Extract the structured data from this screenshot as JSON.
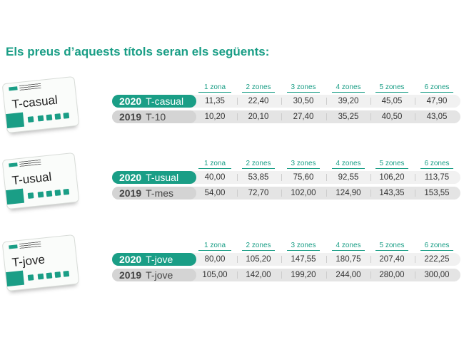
{
  "title": "Els preus d’aquests títols seran els següents:",
  "zones": [
    "1 zona",
    "2 zones",
    "3 zones",
    "4 zones",
    "5 zones",
    "6 zones"
  ],
  "sections": [
    {
      "card": "T-casual",
      "rows": [
        {
          "year": "2020",
          "name": "T-casual",
          "values": [
            "11,35",
            "22,40",
            "30,50",
            "39,20",
            "45,05",
            "47,90"
          ]
        },
        {
          "year": "2019",
          "name": "T-10",
          "values": [
            "10,20",
            "20,10",
            "27,40",
            "35,25",
            "40,50",
            "43,05"
          ]
        }
      ]
    },
    {
      "card": "T-usual",
      "rows": [
        {
          "year": "2020",
          "name": "T-usual",
          "values": [
            "40,00",
            "53,85",
            "75,60",
            "92,55",
            "106,20",
            "113,75"
          ]
        },
        {
          "year": "2019",
          "name": "T-mes",
          "values": [
            "54,00",
            "72,70",
            "102,00",
            "124,90",
            "143,35",
            "153,55"
          ]
        }
      ]
    },
    {
      "card": "T-jove",
      "rows": [
        {
          "year": "2020",
          "name": "T-jove",
          "values": [
            "80,00",
            "105,20",
            "147,55",
            "180,75",
            "207,40",
            "222,25"
          ]
        },
        {
          "year": "2019",
          "name": "T-jove",
          "values": [
            "105,00",
            "142,00",
            "199,20",
            "244,00",
            "280,00",
            "300,00"
          ]
        }
      ]
    }
  ]
}
